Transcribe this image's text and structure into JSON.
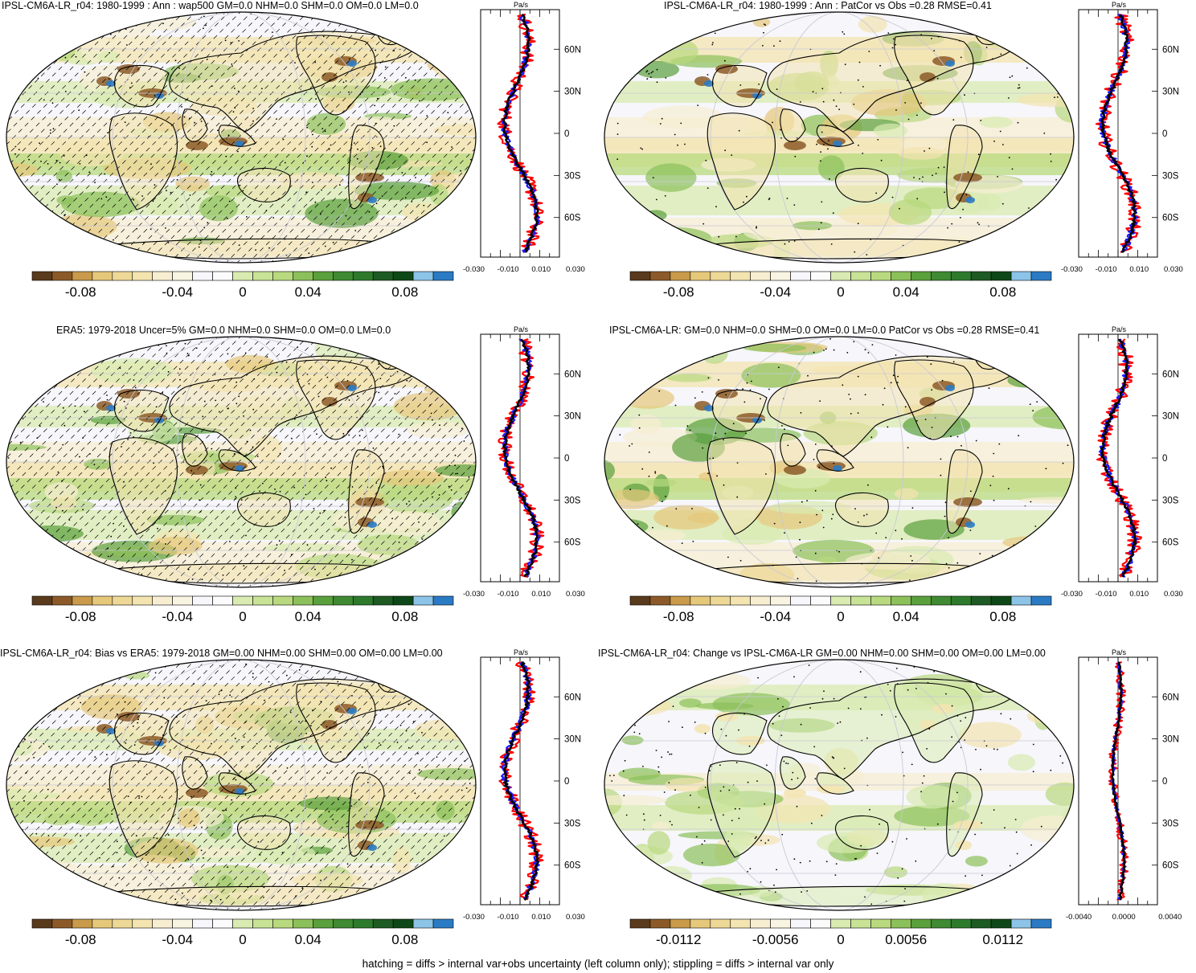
{
  "footnote": "hatching = diffs > internal var+obs uncertainty (left column only); stippling = diffs > internal var only",
  "colors": {
    "brown_dark": "#5a3a1c",
    "brown": "#8c5a28",
    "tan": "#c89a4a",
    "sand": "#e6c87a",
    "cream": "#f3e4b0",
    "pale": "#f7eed2",
    "white": "#f6f6fb",
    "lightgreen": "#d9ebb0",
    "green1": "#b8d97e",
    "green2": "#8cc05a",
    "green3": "#5aa03c",
    "green4": "#2d7a2d",
    "darkgreen": "#1e5a23",
    "lightblue": "#8cc4e8",
    "blue": "#2b7ac4",
    "line_red": "#ff0000",
    "line_blue": "#1a1aff",
    "line_black": "#000000"
  },
  "panels": [
    {
      "title": "IPSL-CM6A-LR_r04: 1980-1999 : Ann : wap500 GM=0.0 NHM=0.0 SHM=0.0 OM=0.0 LM=0.0",
      "colorbar_labels": [
        "-0.08",
        "-0.04",
        "0",
        "0.04",
        "0.08"
      ],
      "hatching": true,
      "zonal": {
        "units": "Pa/s",
        "xticks": [
          "-0.030",
          "-0.010",
          "0.010",
          "0.030"
        ],
        "yticks": [
          "60N",
          "30N",
          "0",
          "30S",
          "60S"
        ]
      }
    },
    {
      "title": "IPSL-CM6A-LR_r04: 1980-1999 : Ann : PatCor vs Obs =0.28 RMSE=0.41",
      "colorbar_labels": [
        "-0.08",
        "-0.04",
        "0",
        "0.04",
        "0.08"
      ],
      "hatching": false,
      "zonal": {
        "units": "Pa/s",
        "xticks": [
          "-0.030",
          "-0.010",
          "0.010",
          "0.030"
        ],
        "yticks": [
          "60N",
          "30N",
          "0",
          "30S",
          "60S"
        ]
      }
    },
    {
      "title": "ERA5: 1979-2018 Uncer=5% GM=0.0 NHM=0.0 SHM=0.0 OM=0.0 LM=0.0",
      "colorbar_labels": [
        "-0.08",
        "-0.04",
        "0",
        "0.04",
        "0.08"
      ],
      "hatching": true,
      "zonal": {
        "units": "Pa/s",
        "xticks": [
          "-0.030",
          "-0.010",
          "0.010",
          "0.030"
        ],
        "yticks": [
          "60N",
          "30N",
          "0",
          "30S",
          "60S"
        ]
      }
    },
    {
      "title": "IPSL-CM6A-LR: GM=0.0 NHM=0.0 SHM=0.0 OM=0.0 LM=0.0 PatCor vs Obs =0.28 RMSE=0.41",
      "colorbar_labels": [
        "-0.08",
        "-0.04",
        "0",
        "0.04",
        "0.08"
      ],
      "hatching": false,
      "zonal": {
        "units": "Pa/s",
        "xticks": [
          "-0.030",
          "-0.010",
          "0.010",
          "0.030"
        ],
        "yticks": [
          "60N",
          "30N",
          "0",
          "30S",
          "60S"
        ]
      }
    },
    {
      "title": "IPSL-CM6A-LR_r04: Bias vs ERA5: 1979-2018 GM=0.00 NHM=0.00 SHM=0.00 OM=0.00 LM=0.00",
      "colorbar_labels": [
        "-0.08",
        "-0.04",
        "0",
        "0.04",
        "0.08"
      ],
      "hatching": true,
      "zonal": {
        "units": "Pa/s",
        "xticks": [
          "-0.030",
          "-0.010",
          "0.010",
          "0.030"
        ],
        "yticks": [
          "60N",
          "30N",
          "0",
          "30S",
          "60S"
        ]
      }
    },
    {
      "title": "IPSL-CM6A-LR_r04: Change vs IPSL-CM6A-LR GM=0.00 NHM=0.00 SHM=0.00 OM=0.00 LM=0.00",
      "colorbar_labels": [
        "-0.0112",
        "-0.0056",
        "0",
        "0.0056",
        "0.0112"
      ],
      "hatching": false,
      "zonal": {
        "units": "Pa/s",
        "xticks": [
          "-0.0040",
          "0.0000",
          "0.0040"
        ],
        "yticks": [
          "60N",
          "30N",
          "0",
          "30S",
          "60S"
        ]
      }
    }
  ]
}
